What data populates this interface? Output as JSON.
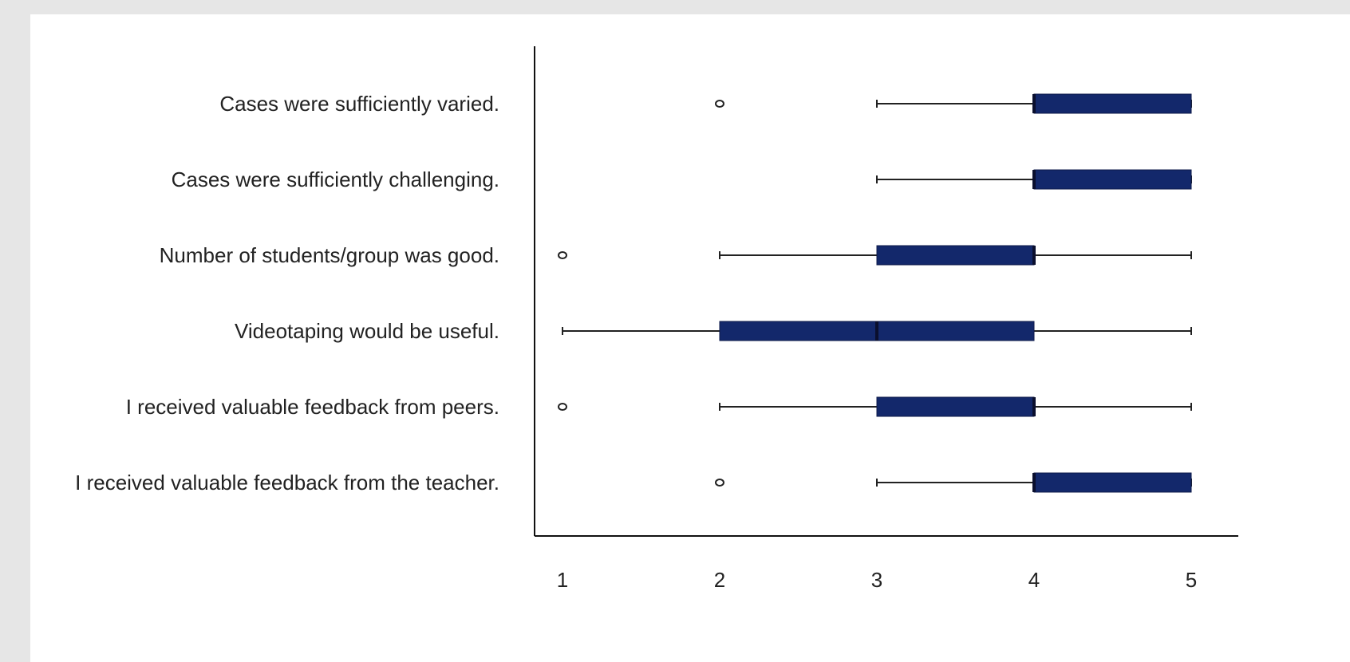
{
  "chart_data": {
    "type": "boxplot",
    "title": "",
    "xlabel": "",
    "ylabel": "",
    "xlim": [
      1,
      5
    ],
    "x_ticks": [
      "1",
      "2",
      "3",
      "4",
      "5"
    ],
    "grid": false,
    "legend": "none",
    "colors": {
      "box": "#13286b",
      "median": "#0a0f2e",
      "whisker": "#222222",
      "axis": "#111111",
      "outlier": "#222222"
    },
    "categories": [
      "Cases were sufficiently varied.",
      "Cases were sufficiently challenging.",
      "Number of students/group was good.",
      "Videotaping would be useful.",
      "I received valuable feedback from peers.",
      "I received valuable feedback from the teacher."
    ],
    "boxes": [
      {
        "whisker_low": 3,
        "q1": 4,
        "median": 4,
        "q3": 5,
        "whisker_high": 5,
        "outliers": [
          2
        ]
      },
      {
        "whisker_low": 3,
        "q1": 4,
        "median": 4,
        "q3": 5,
        "whisker_high": 5,
        "outliers": []
      },
      {
        "whisker_low": 2,
        "q1": 3,
        "median": 4,
        "q3": 4,
        "whisker_high": 5,
        "outliers": [
          1
        ]
      },
      {
        "whisker_low": 1,
        "q1": 2,
        "median": 3,
        "q3": 4,
        "whisker_high": 5,
        "outliers": []
      },
      {
        "whisker_low": 2,
        "q1": 3,
        "median": 4,
        "q3": 4,
        "whisker_high": 5,
        "outliers": [
          1
        ]
      },
      {
        "whisker_low": 3,
        "q1": 4,
        "median": 4,
        "q3": 5,
        "whisker_high": 5,
        "outliers": [
          2
        ]
      }
    ]
  }
}
